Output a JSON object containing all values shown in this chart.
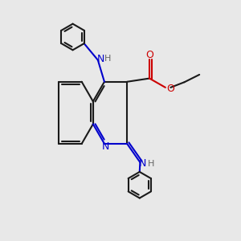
{
  "bg_color": "#e8e8e8",
  "bond_color": "#1a1a1a",
  "N_color": "#0000cc",
  "O_color": "#cc0000",
  "lw": 1.5,
  "fig_size": [
    3.0,
    3.0
  ],
  "dpi": 100,
  "xlim": [
    0,
    10
  ],
  "ylim": [
    0,
    10
  ]
}
